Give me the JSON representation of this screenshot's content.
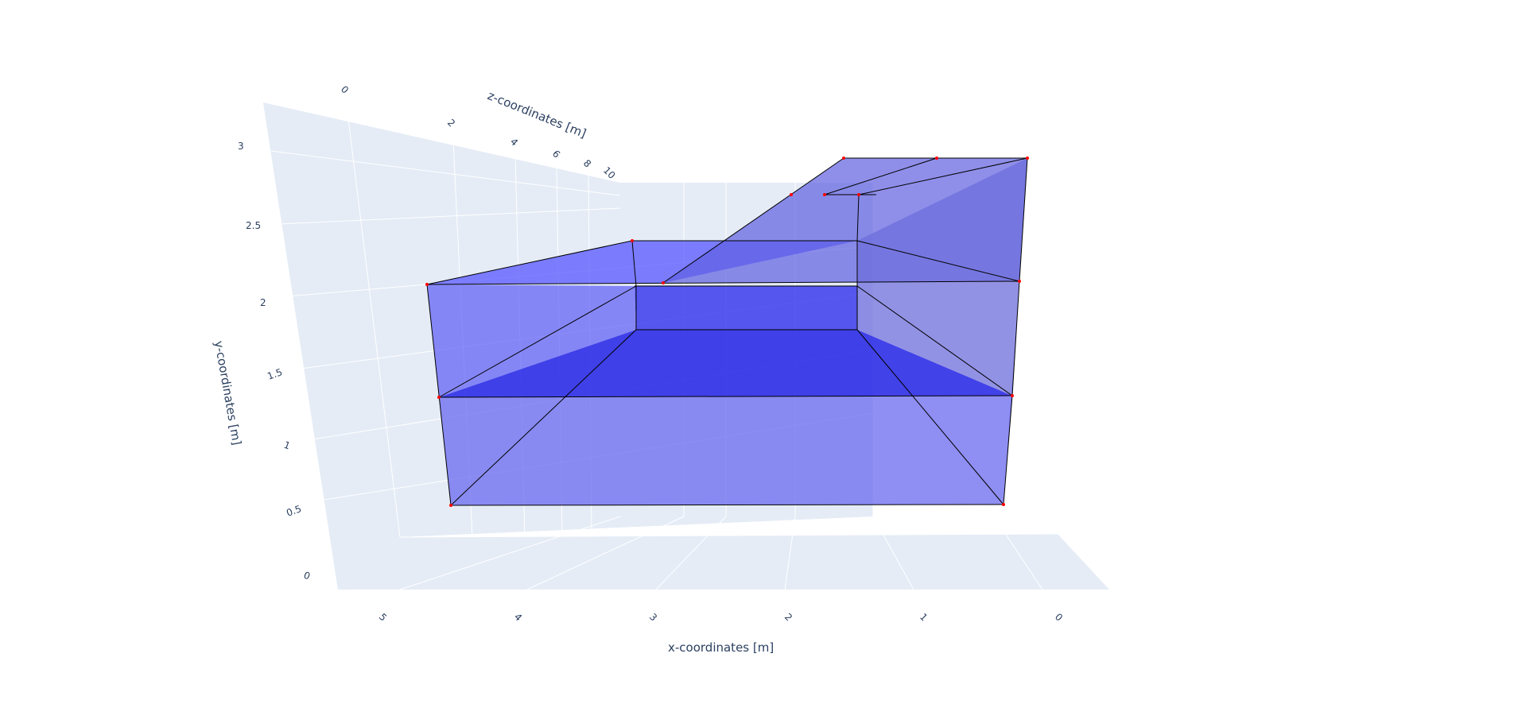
{
  "chart_data": {
    "type": "mesh3d",
    "axes": {
      "x": {
        "title": "x-coordinates [m]",
        "ticks": [
          "5",
          "4",
          "3",
          "2",
          "1",
          "0"
        ]
      },
      "y": {
        "title": "y-coordinates [m]",
        "ticks": [
          "0",
          "0.5",
          "1",
          "1.5",
          "2",
          "2.5",
          "3"
        ]
      },
      "z": {
        "title": "z-coordinates [m]",
        "ticks": [
          "0",
          "2",
          "4",
          "6",
          "8",
          "10"
        ]
      }
    },
    "mesh_color": "#0000ff",
    "edge_color": "#000000",
    "vertex_color": "#ff0000",
    "pane_color": "#e5ecf6"
  }
}
